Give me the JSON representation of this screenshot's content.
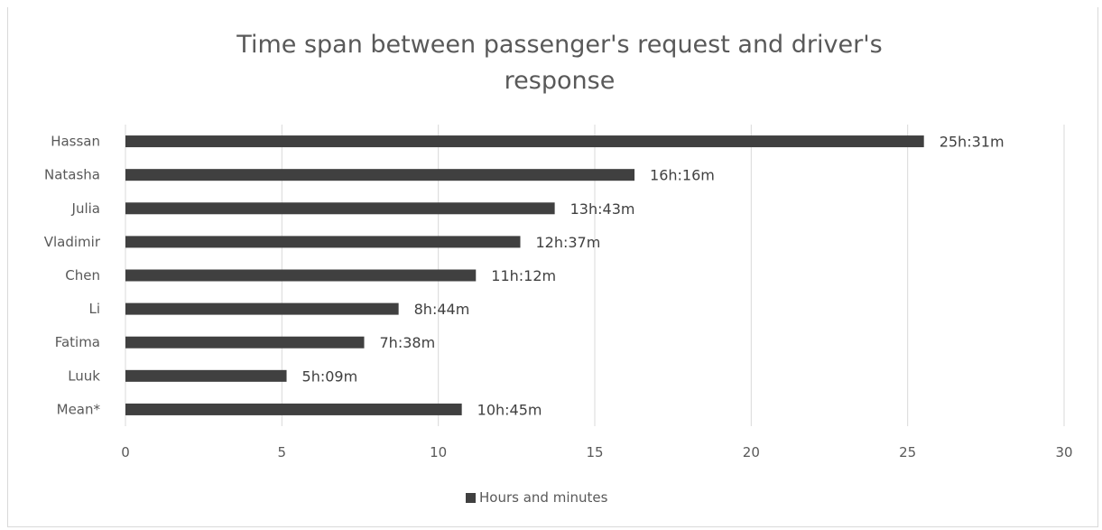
{
  "chart_data": {
    "type": "bar",
    "orientation": "horizontal",
    "title": "Time span between passenger's request and driver's response",
    "title_lines": [
      "Time span between passenger's request and driver's",
      "response"
    ],
    "categories": [
      "Hassan",
      "Natasha",
      "Julia",
      "Vladimir",
      "Chen",
      "Li",
      "Fatima",
      "Luuk",
      "Mean*"
    ],
    "series": [
      {
        "name": "Hours and minutes",
        "values": [
          25.52,
          16.27,
          13.72,
          12.62,
          11.2,
          8.73,
          7.63,
          5.15,
          10.75
        ],
        "labels": [
          "25h:31m",
          "16h:16m",
          "13h:43m",
          "12h:37m",
          "11h:12m",
          "8h:44m",
          "7h:38m",
          "5h:09m",
          "10h:45m"
        ]
      }
    ],
    "xlim": [
      0,
      30
    ],
    "xticks": [
      "0",
      "5",
      "10",
      "15",
      "20",
      "25",
      "30"
    ],
    "grid": true,
    "legend": "bottom",
    "bar_color": "#404040",
    "grid_color": "#d9d9d9",
    "text_color": "#595959"
  }
}
